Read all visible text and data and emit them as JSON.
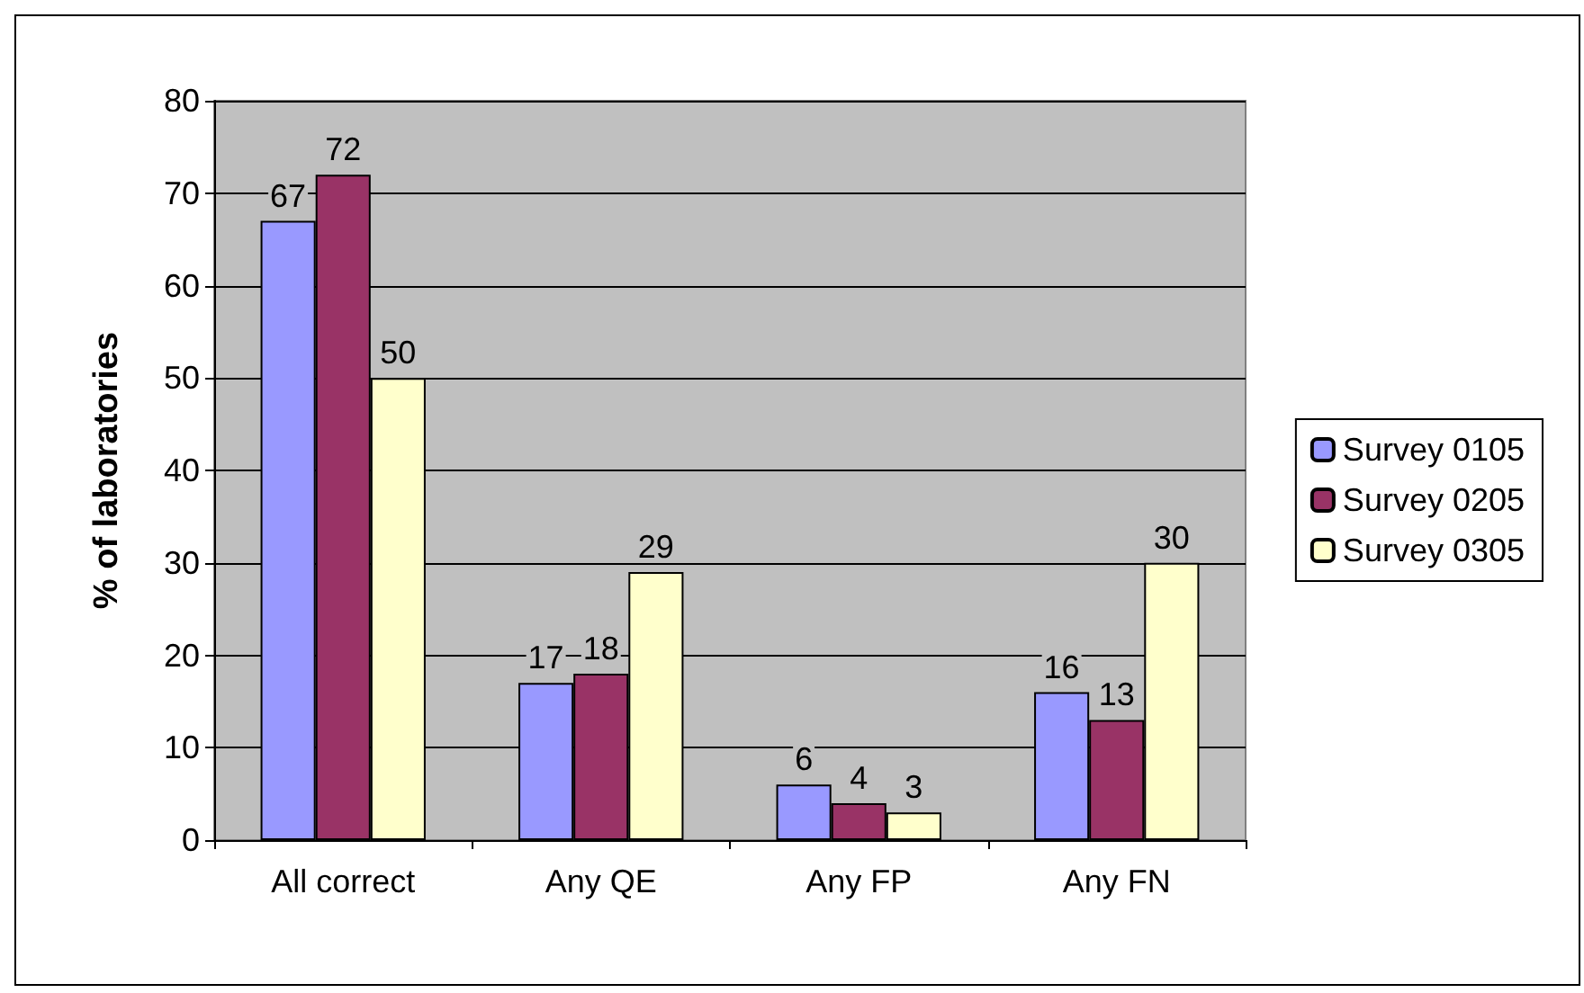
{
  "chart_data": {
    "type": "bar",
    "ylabel": "% of laboratories",
    "categories": [
      "All correct",
      "Any QE",
      "Any FP",
      "Any FN"
    ],
    "series": [
      {
        "name": "Survey 0105",
        "color": "#9999ff",
        "values": [
          67,
          17,
          6,
          16
        ]
      },
      {
        "name": "Survey 0205",
        "color": "#993366",
        "values": [
          72,
          18,
          4,
          13
        ]
      },
      {
        "name": "Survey 0305",
        "color": "#ffffcc",
        "values": [
          50,
          29,
          3,
          30
        ]
      }
    ],
    "ylim": [
      0,
      80
    ],
    "yticks": [
      0,
      10,
      20,
      30,
      40,
      50,
      60,
      70,
      80
    ],
    "grid": "y",
    "legend": "right",
    "data_labels": true
  }
}
